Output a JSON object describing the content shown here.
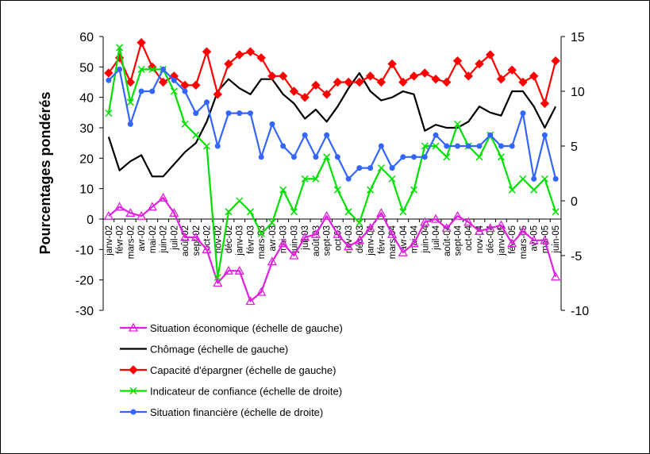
{
  "chart_data": {
    "type": "line",
    "ylabel": "Pourcentages pondérés",
    "ylim_left": [
      -30,
      60
    ],
    "yticks_left": [
      "60",
      "50",
      "40",
      "30",
      "20",
      "10",
      "0",
      "-10",
      "-20",
      "-30"
    ],
    "ylim_right": [
      -10,
      15
    ],
    "yticks_right": [
      "15",
      "10",
      "5",
      "0",
      "-5",
      "-10"
    ],
    "grid": false,
    "legend_position": "bottom",
    "categories": [
      "janv-02",
      "févr-02",
      "mars-02",
      "avr-02",
      "mai-02",
      "juin-02",
      "juil-02",
      "août-02",
      "sept-02",
      "oct-02",
      "nov-02",
      "déc-02",
      "janv-03",
      "févr-03",
      "mars-03",
      "avr-03",
      "mai-03",
      "juin-03",
      "juil-03",
      "août-03",
      "sept-03",
      "oct-03",
      "nov-03",
      "déc-03",
      "janv-04",
      "févr-04",
      "mars-04",
      "avr-04",
      "mai-04",
      "juin-04",
      "juil-04",
      "août-04",
      "sept-04",
      "oct-04",
      "nov-04",
      "déc-04",
      "janv-05",
      "févr-05",
      "mars-05",
      "avr-05",
      "mai-05",
      "juin-05"
    ],
    "series": [
      {
        "name": "Situation économique (échelle de gauche)",
        "axis": "left",
        "color": "#e020e0",
        "marker": "triangle",
        "values": [
          1,
          4,
          2,
          1,
          4,
          7,
          2,
          -6,
          -6,
          -10,
          -21,
          -17,
          -17,
          -27,
          -24,
          -14,
          -8,
          -12,
          -6,
          -5,
          1,
          -5,
          -9,
          -7,
          -3,
          2,
          -5,
          -11,
          -8,
          -1,
          0,
          -3,
          1,
          -1,
          -4,
          -3,
          -2,
          -8,
          -4,
          -7,
          -7,
          -19
        ]
      },
      {
        "name": "Chômage (échelle de gauche)",
        "axis": "left",
        "color": "#000000",
        "marker": "none",
        "values": [
          27,
          16,
          19,
          21,
          14,
          14,
          18,
          22,
          25,
          32,
          42,
          46,
          43,
          41,
          46,
          46,
          41,
          38,
          33,
          36,
          32,
          37,
          43,
          48,
          42,
          39,
          40,
          42,
          41,
          29,
          31,
          30,
          30,
          32,
          37,
          35,
          34,
          42,
          42,
          37,
          30,
          37
        ]
      },
      {
        "name": "Capacité d'épargner (échelle de gauche)",
        "axis": "left",
        "color": "#ff0000",
        "marker": "diamond",
        "values": [
          48,
          53,
          45,
          58,
          50,
          45,
          47,
          44,
          44,
          55,
          41,
          51,
          54,
          55,
          53,
          47,
          47,
          42,
          40,
          44,
          41,
          45,
          45,
          45,
          47,
          45,
          51,
          45,
          47,
          48,
          46,
          45,
          52,
          47,
          51,
          54,
          46,
          49,
          45,
          47,
          38,
          52
        ]
      },
      {
        "name": "Indicateur de confiance (échelle de droite)",
        "axis": "right",
        "color": "#00e000",
        "marker": "x",
        "values": [
          8,
          14,
          9,
          12,
          12,
          12,
          10,
          7,
          6,
          5,
          -7,
          -1,
          0,
          -1,
          -3,
          -2,
          1,
          -1,
          2,
          2,
          4,
          1,
          -1,
          -2,
          1,
          3,
          2,
          -1,
          1,
          5,
          5,
          4,
          7,
          5,
          4,
          6,
          4,
          1,
          2,
          1,
          2,
          -1
        ]
      },
      {
        "name": "Situation financière (échelle de droite)",
        "axis": "right",
        "color": "#3366ff",
        "marker": "dot",
        "values": [
          11,
          12,
          7,
          10,
          10,
          12,
          11,
          10,
          8,
          9,
          5,
          8,
          8,
          8,
          4,
          7,
          5,
          4,
          6,
          4,
          6,
          4,
          2,
          3,
          3,
          5,
          3,
          4,
          4,
          4,
          6,
          5,
          5,
          5,
          5,
          6,
          5,
          5,
          8,
          2,
          6,
          2
        ]
      }
    ]
  }
}
